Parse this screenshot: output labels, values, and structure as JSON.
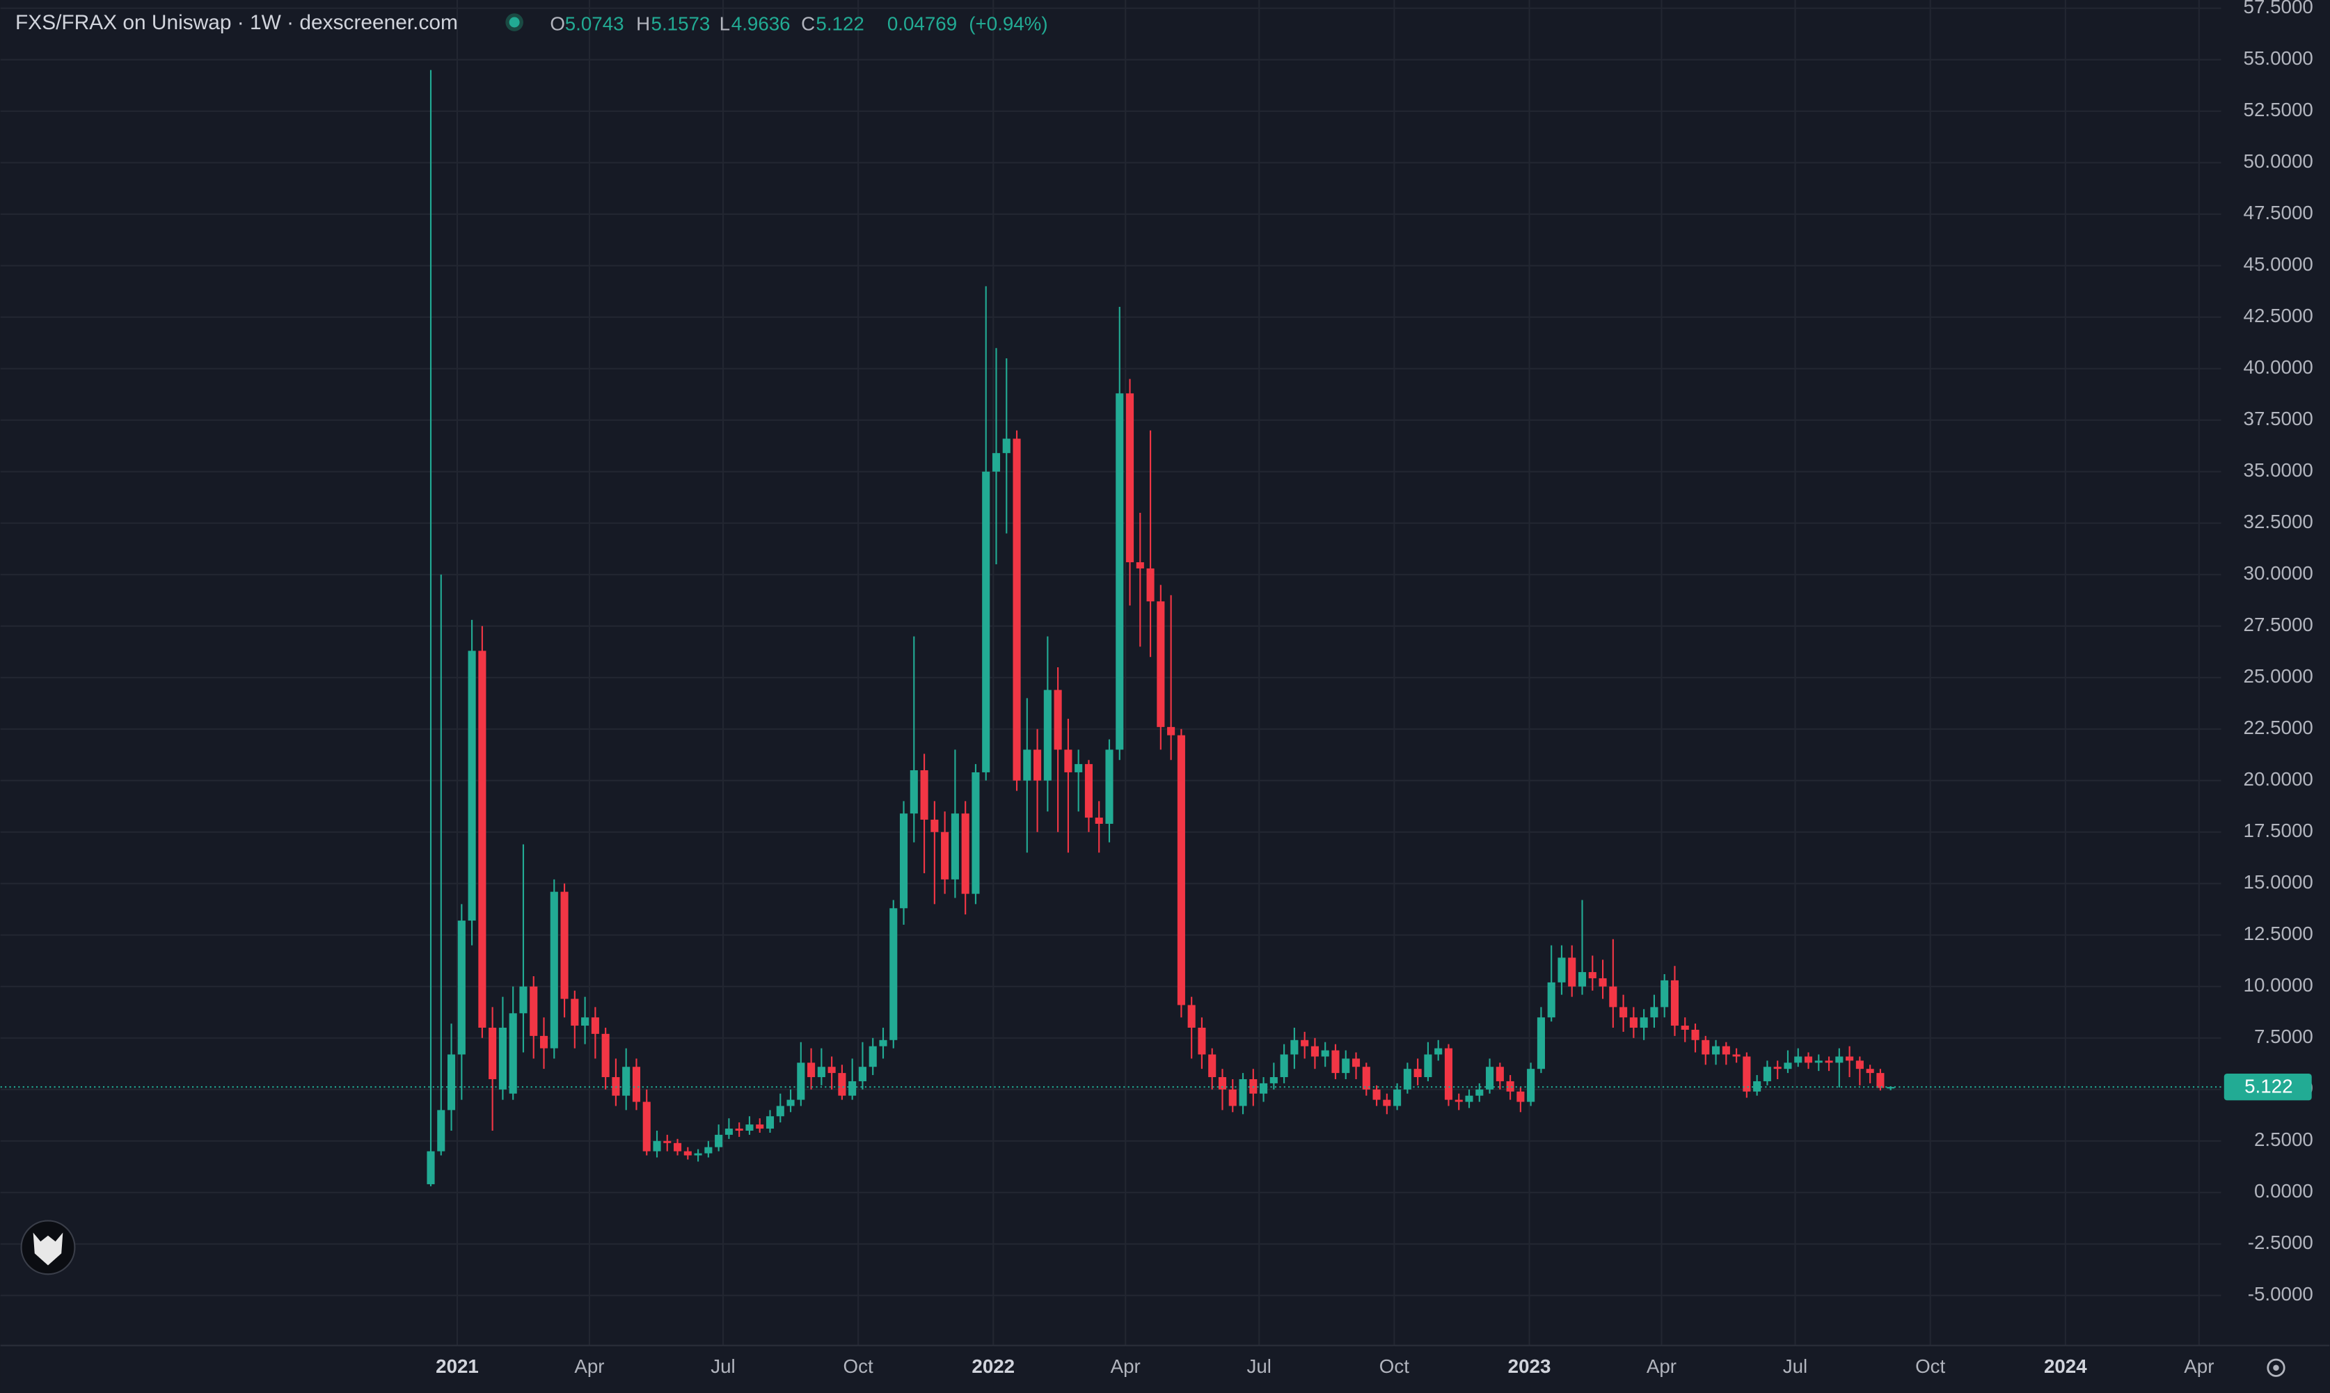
{
  "header": {
    "title": "FXS/FRAX on Uniswap · 1W · dexscreener.com",
    "ohlc_labels": [
      "O",
      "H",
      "L",
      "C"
    ],
    "change": 0.04769,
    "change_pct": {
      "value": 0.94,
      "label": "(+0.94%)"
    }
  },
  "chart_data": {
    "type": "candlestick",
    "up_color": "#22ab94",
    "down_color": "#f23645",
    "grid": true,
    "last_price_line": true,
    "xlim": [
      "2020-02-25",
      "2024-04-16"
    ],
    "ylim": [
      -7.43,
      57.9
    ],
    "xticks": [
      {
        "value": "2021-01-01",
        "label": "2021"
      },
      {
        "value": "2021-04-01",
        "label": "Apr"
      },
      {
        "value": "2021-07-01",
        "label": "Jul"
      },
      {
        "value": "2021-10-01",
        "label": "Oct"
      },
      {
        "value": "2022-01-01",
        "label": "2022"
      },
      {
        "value": "2022-04-01",
        "label": "Apr"
      },
      {
        "value": "2022-07-01",
        "label": "Jul"
      },
      {
        "value": "2022-10-01",
        "label": "Oct"
      },
      {
        "value": "2023-01-01",
        "label": "2023"
      },
      {
        "value": "2023-04-01",
        "label": "Apr"
      },
      {
        "value": "2023-07-01",
        "label": "Jul"
      },
      {
        "value": "2023-10-01",
        "label": "Oct"
      },
      {
        "value": "2024-01-01",
        "label": "2024"
      },
      {
        "value": "2024-04-01",
        "label": "Apr"
      }
    ],
    "yticks": [
      {
        "value": -5,
        "label": "-5.0000"
      },
      {
        "value": -2.5,
        "label": "-2.5000"
      },
      {
        "value": 0,
        "label": "0.0000"
      },
      {
        "value": 2.5,
        "label": "2.5000"
      },
      {
        "value": 5,
        "label": "5.0000"
      },
      {
        "value": 7.5,
        "label": "7.5000"
      },
      {
        "value": 10,
        "label": "10.0000"
      },
      {
        "value": 12.5,
        "label": "12.5000"
      },
      {
        "value": 15,
        "label": "15.0000"
      },
      {
        "value": 17.5,
        "label": "17.5000"
      },
      {
        "value": 20,
        "label": "20.0000"
      },
      {
        "value": 22.5,
        "label": "22.5000"
      },
      {
        "value": 25,
        "label": "25.0000"
      },
      {
        "value": 27.5,
        "label": "27.5000"
      },
      {
        "value": 30,
        "label": "30.0000"
      },
      {
        "value": 32.5,
        "label": "32.5000"
      },
      {
        "value": 35,
        "label": "35.0000"
      },
      {
        "value": 37.5,
        "label": "37.5000"
      },
      {
        "value": 40,
        "label": "40.0000"
      },
      {
        "value": 42.5,
        "label": "42.5000"
      },
      {
        "value": 45,
        "label": "45.0000"
      },
      {
        "value": 47.5,
        "label": "47.5000"
      },
      {
        "value": 50,
        "label": "50.0000"
      },
      {
        "value": 52.5,
        "label": "52.5000"
      },
      {
        "value": 55,
        "label": "55.0000"
      },
      {
        "value": 57.5,
        "label": "57.5000"
      }
    ],
    "x": [
      "2020-12-14",
      "2020-12-21",
      "2020-12-28",
      "2021-01-04",
      "2021-01-11",
      "2021-01-18",
      "2021-01-25",
      "2021-02-01",
      "2021-02-08",
      "2021-02-15",
      "2021-02-22",
      "2021-03-01",
      "2021-03-08",
      "2021-03-15",
      "2021-03-22",
      "2021-03-29",
      "2021-04-05",
      "2021-04-12",
      "2021-04-19",
      "2021-04-26",
      "2021-05-03",
      "2021-05-10",
      "2021-05-17",
      "2021-05-24",
      "2021-05-31",
      "2021-06-07",
      "2021-06-14",
      "2021-06-21",
      "2021-06-28",
      "2021-07-05",
      "2021-07-12",
      "2021-07-19",
      "2021-07-26",
      "2021-08-02",
      "2021-08-09",
      "2021-08-16",
      "2021-08-23",
      "2021-08-30",
      "2021-09-06",
      "2021-09-13",
      "2021-09-20",
      "2021-09-27",
      "2021-10-04",
      "2021-10-11",
      "2021-10-18",
      "2021-10-25",
      "2021-11-01",
      "2021-11-08",
      "2021-11-15",
      "2021-11-22",
      "2021-11-29",
      "2021-12-06",
      "2021-12-13",
      "2021-12-20",
      "2021-12-27",
      "2022-01-03",
      "2022-01-10",
      "2022-01-17",
      "2022-01-24",
      "2022-01-31",
      "2022-02-07",
      "2022-02-14",
      "2022-02-21",
      "2022-02-28",
      "2022-03-07",
      "2022-03-14",
      "2022-03-21",
      "2022-03-28",
      "2022-04-04",
      "2022-04-11",
      "2022-04-18",
      "2022-04-25",
      "2022-05-02",
      "2022-05-09",
      "2022-05-16",
      "2022-05-23",
      "2022-05-30",
      "2022-06-06",
      "2022-06-13",
      "2022-06-20",
      "2022-06-27",
      "2022-07-04",
      "2022-07-11",
      "2022-07-18",
      "2022-07-25",
      "2022-08-01",
      "2022-08-08",
      "2022-08-15",
      "2022-08-22",
      "2022-08-29",
      "2022-09-05",
      "2022-09-12",
      "2022-09-19",
      "2022-09-26",
      "2022-10-03",
      "2022-10-10",
      "2022-10-17",
      "2022-10-24",
      "2022-10-31",
      "2022-11-07",
      "2022-11-14",
      "2022-11-21",
      "2022-11-28",
      "2022-12-05",
      "2022-12-12",
      "2022-12-19",
      "2022-12-26",
      "2023-01-02",
      "2023-01-09",
      "2023-01-16",
      "2023-01-23",
      "2023-01-30",
      "2023-02-06",
      "2023-02-13",
      "2023-02-20",
      "2023-02-27",
      "2023-03-06",
      "2023-03-13",
      "2023-03-20",
      "2023-03-27",
      "2023-04-03",
      "2023-04-10",
      "2023-04-17",
      "2023-04-24",
      "2023-05-01",
      "2023-05-08",
      "2023-05-15",
      "2023-05-22",
      "2023-05-29",
      "2023-06-05",
      "2023-06-12",
      "2023-06-19",
      "2023-06-26",
      "2023-07-03",
      "2023-07-10",
      "2023-07-17",
      "2023-07-24",
      "2023-07-31",
      "2023-08-07",
      "2023-08-14",
      "2023-08-21",
      "2023-08-28",
      "2023-09-04"
    ],
    "open": [
      0.4,
      2.0,
      4.0,
      6.7,
      13.2,
      26.3,
      8.0,
      5.0,
      4.8,
      8.7,
      10,
      7.6,
      7.0,
      14.6,
      9.4,
      8.1,
      8.5,
      7.7,
      5.6,
      4.7,
      6.1,
      4.4,
      2.0,
      2.5,
      2.4,
      2.0,
      1.8,
      1.9,
      2.2,
      2.8,
      3.1,
      3.0,
      3.3,
      3.1,
      3.7,
      4.2,
      4.5,
      6.3,
      5.6,
      6.1,
      5.8,
      4.7,
      5.4,
      6.1,
      7.1,
      7.4,
      13.8,
      18.4,
      20.5,
      18.1,
      17.5,
      15.2,
      18.4,
      14.5,
      20.4,
      35.0,
      35.9,
      36.6,
      20.0,
      21.5,
      20.0,
      24.4,
      21.5,
      20.4,
      20.8,
      18.2,
      17.9,
      21.5,
      38.8,
      30.6,
      30.3,
      28.7,
      22.6,
      22.2,
      9.1,
      8.0,
      6.7,
      5.6,
      5.0,
      4.2,
      5.5,
      4.8,
      5.3,
      5.6,
      6.7,
      7.4,
      7.1,
      6.6,
      6.9,
      5.8,
      6.5,
      6.1,
      5.0,
      4.5,
      4.2,
      5.0,
      6.0,
      5.6,
      6.7,
      7.0,
      4.5,
      4.4,
      4.7,
      5.0,
      6.1,
      5.4,
      4.9,
      4.4,
      6.0,
      8.5,
      10.2,
      11.4,
      10.0,
      10.7,
      10.4,
      10.0,
      9.0,
      8.5,
      8.0,
      8.5,
      9.0,
      10.3,
      8.1,
      7.9,
      7.4,
      6.7,
      7.1,
      6.7,
      6.6,
      4.9,
      5.4,
      6.1,
      6.0,
      6.3,
      6.6,
      6.3,
      6.4,
      6.3,
      6.6,
      6.4,
      6.0,
      5.8,
      5.0743
    ],
    "high": [
      54.5,
      30,
      8.2,
      14,
      27.8,
      27.5,
      9,
      9.5,
      10,
      16.9,
      10.5,
      8.5,
      15.2,
      15.0,
      9.8,
      9.5,
      9.0,
      8.0,
      6.5,
      7.0,
      6.5,
      5.0,
      3.0,
      2.8,
      2.6,
      2.2,
      2.1,
      2.5,
      3.3,
      3.6,
      3.4,
      3.7,
      3.6,
      4.0,
      4.8,
      5.0,
      7.3,
      7.0,
      7.0,
      6.6,
      6.2,
      6.5,
      7.3,
      7.5,
      8.0,
      14.2,
      19.0,
      27.0,
      21.3,
      19.0,
      18.5,
      21.5,
      19.0,
      20.8,
      44.0,
      41.0,
      40.5,
      37.0,
      24.0,
      22.5,
      27.0,
      25.5,
      23.0,
      21.5,
      21.0,
      19.0,
      22.0,
      43.0,
      39.5,
      33.0,
      37.0,
      29.5,
      29.0,
      22.5,
      9.5,
      8.5,
      7.0,
      6.0,
      5.5,
      5.8,
      6.0,
      5.6,
      6.3,
      7.2,
      8.0,
      7.8,
      7.5,
      7.3,
      7.2,
      6.9,
      6.8,
      6.3,
      5.2,
      4.8,
      5.3,
      6.3,
      6.5,
      7.3,
      7.4,
      7.2,
      4.8,
      5.0,
      5.3,
      6.5,
      6.3,
      5.7,
      5.1,
      6.3,
      9.0,
      12.0,
      12.0,
      12.0,
      14.2,
      11.5,
      11.3,
      12.3,
      9.6,
      9.0,
      8.9,
      9.6,
      10.6,
      11.0,
      8.5,
      8.2,
      7.6,
      7.4,
      7.3,
      7.0,
      6.8,
      5.7,
      6.4,
      6.4,
      6.9,
      7.0,
      6.8,
      6.7,
      6.6,
      7.0,
      7.1,
      6.6,
      6.2,
      6.0,
      5.1573
    ],
    "low": [
      0.3,
      1.8,
      3.0,
      4.5,
      12,
      7.5,
      3.0,
      4.5,
      4.5,
      6.8,
      6.5,
      6.0,
      6.5,
      8.5,
      7.0,
      7.2,
      6.5,
      5.0,
      4.2,
      4.0,
      4.0,
      1.8,
      1.7,
      2.0,
      1.8,
      1.6,
      1.5,
      1.7,
      2.0,
      2.6,
      2.7,
      2.8,
      2.9,
      2.9,
      3.4,
      3.9,
      4.2,
      5.0,
      5.2,
      5.0,
      4.5,
      4.5,
      5.0,
      5.7,
      6.5,
      7.0,
      13.0,
      17.0,
      15.5,
      14.0,
      14.5,
      14.3,
      13.5,
      14.0,
      20.0,
      30.5,
      32.0,
      19.5,
      16.5,
      17.5,
      18.5,
      17.5,
      16.5,
      18.5,
      17.5,
      16.5,
      17.0,
      21.0,
      28.5,
      26.5,
      26.0,
      21.5,
      21.0,
      8.5,
      6.5,
      6.0,
      5.0,
      4.0,
      3.9,
      3.8,
      4.2,
      4.4,
      5.0,
      5.3,
      6.0,
      6.5,
      6.0,
      6.1,
      5.5,
      5.5,
      5.5,
      4.7,
      4.2,
      3.8,
      4.0,
      4.8,
      5.2,
      5.4,
      6.4,
      4.2,
      4.0,
      4.1,
      4.4,
      4.8,
      5.0,
      4.5,
      3.9,
      4.2,
      5.8,
      8.3,
      9.6,
      9.5,
      9.6,
      9.8,
      9.4,
      8.0,
      7.8,
      7.5,
      7.4,
      8.0,
      8.5,
      7.6,
      7.3,
      6.8,
      6.2,
      6.2,
      6.2,
      6.3,
      4.6,
      4.7,
      5.2,
      5.5,
      5.8,
      6.1,
      6.0,
      5.9,
      5.9,
      5.1,
      5.6,
      5.2,
      5.3,
      4.95,
      4.9636
    ],
    "close": [
      2.0,
      4.0,
      6.7,
      13.2,
      26.3,
      8.0,
      5.5,
      8.0,
      8.7,
      10.0,
      7.6,
      7.0,
      14.6,
      9.4,
      8.1,
      8.5,
      7.7,
      5.6,
      4.7,
      6.1,
      4.4,
      2.0,
      2.5,
      2.4,
      2.0,
      1.8,
      1.9,
      2.2,
      2.8,
      3.1,
      3.0,
      3.3,
      3.1,
      3.7,
      4.2,
      4.5,
      6.3,
      5.6,
      6.1,
      5.8,
      4.7,
      5.4,
      6.1,
      7.1,
      7.4,
      13.8,
      18.4,
      20.5,
      18.1,
      17.5,
      15.2,
      18.4,
      14.5,
      20.4,
      35.0,
      35.9,
      36.6,
      20.0,
      21.5,
      20.0,
      24.4,
      21.5,
      20.4,
      20.8,
      18.2,
      17.9,
      21.5,
      38.8,
      30.6,
      30.3,
      28.7,
      22.6,
      22.2,
      9.1,
      8.0,
      6.7,
      5.6,
      5.0,
      4.2,
      5.5,
      4.8,
      5.3,
      5.6,
      6.7,
      7.4,
      7.1,
      6.6,
      6.9,
      5.8,
      6.5,
      6.1,
      5.0,
      4.5,
      4.2,
      5.0,
      6.0,
      5.6,
      6.7,
      7.0,
      4.5,
      4.4,
      4.7,
      5.0,
      6.1,
      5.4,
      4.9,
      4.4,
      6.0,
      8.5,
      10.2,
      11.4,
      10.0,
      10.7,
      10.4,
      10.0,
      9.0,
      8.5,
      8.0,
      8.5,
      9.0,
      10.3,
      8.1,
      7.9,
      7.4,
      6.7,
      7.1,
      6.7,
      6.6,
      4.9,
      5.4,
      6.1,
      6.0,
      6.3,
      6.6,
      6.3,
      6.4,
      6.3,
      6.6,
      6.4,
      6.0,
      5.8,
      5.0743,
      5.122
    ]
  }
}
